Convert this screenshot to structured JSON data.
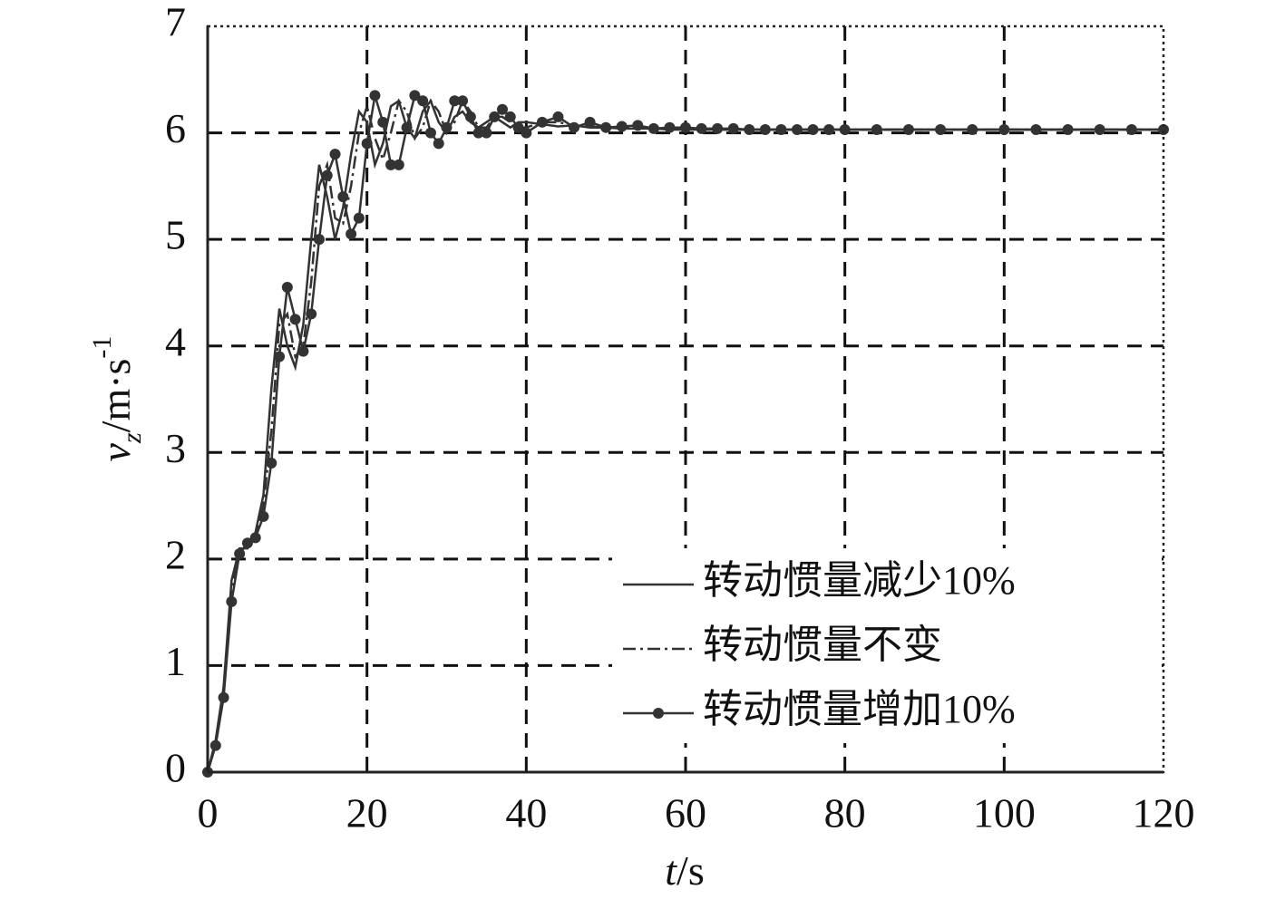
{
  "chart_data": {
    "type": "line",
    "xlabel": [
      "t",
      "/s"
    ],
    "ylabel": [
      "v",
      "z",
      "/m·s",
      "-1"
    ],
    "x": [
      0,
      1,
      2,
      3,
      4,
      5,
      6,
      7,
      8,
      9,
      10,
      11,
      12,
      13,
      14,
      15,
      16,
      17,
      18,
      19,
      20,
      21,
      22,
      23,
      24,
      25,
      26,
      27,
      28,
      29,
      30,
      31,
      32,
      33,
      34,
      35,
      36,
      37,
      38,
      39,
      40,
      42,
      44,
      46,
      48,
      50,
      52,
      54,
      56,
      58,
      60,
      62,
      64,
      66,
      68,
      70,
      72,
      74,
      76,
      78,
      80,
      84,
      88,
      92,
      96,
      100,
      104,
      108,
      112,
      116,
      120
    ],
    "series": [
      {
        "name": "转动惯量减少10%",
        "color": "#333333",
        "line_style": "solid",
        "marker": "none",
        "values": [
          0,
          0.3,
          0.8,
          1.8,
          2.1,
          2.1,
          2.25,
          2.6,
          3.6,
          4.35,
          4.0,
          3.8,
          4.2,
          5.0,
          5.7,
          5.4,
          5.0,
          5.3,
          5.8,
          6.2,
          6.1,
          5.7,
          5.9,
          6.25,
          6.3,
          6.05,
          5.95,
          6.2,
          6.3,
          6.1,
          6.0,
          6.15,
          6.2,
          6.1,
          6.05,
          6.1,
          6.15,
          6.1,
          6.05,
          6.1,
          6.1,
          6.08,
          6.06,
          6.07,
          6.05,
          6.05,
          6.04,
          6.04,
          6.04,
          6.03,
          6.03,
          6.03,
          6.03,
          6.03,
          6.03,
          6.03,
          6.03,
          6.03,
          6.03,
          6.03,
          6.03,
          6.03,
          6.03,
          6.03,
          6.03,
          6.03,
          6.03,
          6.03,
          6.03,
          6.03,
          6.03
        ]
      },
      {
        "name": "转动惯量不变",
        "color": "#333333",
        "line_style": "dashdot",
        "marker": "none",
        "values": [
          0,
          0.28,
          0.75,
          1.7,
          2.08,
          2.12,
          2.22,
          2.5,
          3.2,
          4.2,
          4.3,
          3.9,
          4.0,
          4.6,
          5.5,
          5.7,
          5.2,
          5.15,
          5.5,
          6.0,
          6.25,
          5.95,
          5.75,
          6.0,
          6.3,
          6.2,
          5.95,
          6.05,
          6.3,
          6.2,
          6.0,
          6.1,
          6.3,
          6.2,
          6.05,
          6.05,
          6.15,
          6.15,
          6.1,
          6.05,
          6.05,
          6.1,
          6.1,
          6.07,
          6.06,
          6.05,
          6.05,
          6.05,
          6.04,
          6.04,
          6.04,
          6.03,
          6.03,
          6.03,
          6.03,
          6.03,
          6.03,
          6.03,
          6.03,
          6.03,
          6.03,
          6.03,
          6.03,
          6.03,
          6.03,
          6.03,
          6.03,
          6.03,
          6.03,
          6.03,
          6.03
        ]
      },
      {
        "name": "转动惯量增加10%",
        "color": "#333333",
        "line_style": "solid",
        "marker": "circle",
        "values": [
          0,
          0.25,
          0.7,
          1.6,
          2.05,
          2.15,
          2.2,
          2.4,
          2.9,
          3.9,
          4.55,
          4.25,
          3.95,
          4.3,
          5.0,
          5.6,
          5.8,
          5.4,
          5.05,
          5.2,
          5.9,
          6.35,
          6.1,
          5.7,
          5.7,
          6.05,
          6.35,
          6.3,
          6.0,
          5.9,
          6.05,
          6.3,
          6.3,
          6.15,
          6.0,
          6.0,
          6.15,
          6.22,
          6.15,
          6.05,
          6.0,
          6.1,
          6.15,
          6.05,
          6.1,
          6.05,
          6.06,
          6.07,
          6.04,
          6.05,
          6.05,
          6.04,
          6.04,
          6.04,
          6.03,
          6.03,
          6.03,
          6.03,
          6.03,
          6.03,
          6.03,
          6.03,
          6.03,
          6.03,
          6.03,
          6.03,
          6.03,
          6.03,
          6.03,
          6.03,
          6.03
        ]
      }
    ],
    "xlim": [
      0,
      120
    ],
    "xticks": [
      0,
      20,
      40,
      60,
      80,
      100,
      120
    ],
    "ylim": [
      0,
      7
    ],
    "yticks": [
      0,
      1,
      2,
      3,
      4,
      5,
      6,
      7
    ],
    "grid": true,
    "legend": "lower right"
  }
}
